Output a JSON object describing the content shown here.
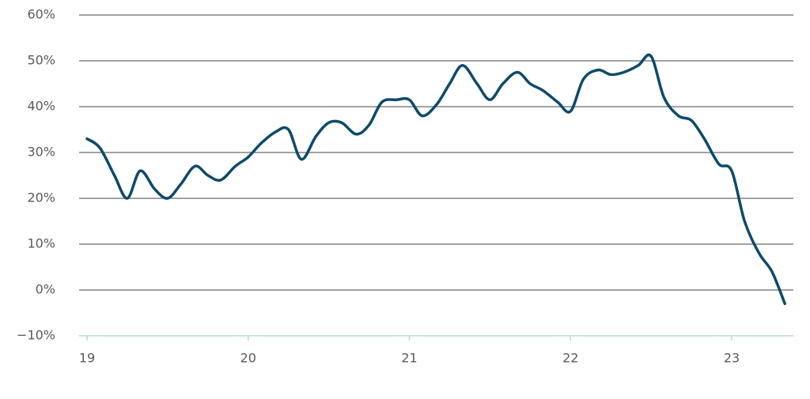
{
  "chart_data": {
    "type": "line",
    "x": [
      19.0,
      19.08,
      19.17,
      19.25,
      19.33,
      19.42,
      19.5,
      19.58,
      19.67,
      19.75,
      19.83,
      19.92,
      20.0,
      20.08,
      20.17,
      20.25,
      20.33,
      20.42,
      20.5,
      20.58,
      20.67,
      20.75,
      20.83,
      20.92,
      21.0,
      21.08,
      21.17,
      21.25,
      21.33,
      21.42,
      21.5,
      21.58,
      21.67,
      21.75,
      21.83,
      21.92,
      22.0,
      22.08,
      22.17,
      22.25,
      22.33,
      22.42,
      22.5,
      22.58,
      22.67,
      22.75,
      22.83,
      22.92,
      23.0,
      23.08,
      23.17,
      23.25,
      23.33
    ],
    "series": [
      {
        "color": "#0e4a6a",
        "values": [
          33,
          31,
          25,
          20,
          26,
          22,
          20,
          23,
          27,
          25,
          24,
          27,
          29,
          32,
          34.5,
          35,
          28.5,
          33.5,
          36.5,
          36.5,
          34,
          36,
          41,
          41.5,
          41.5,
          38,
          40.5,
          45,
          49,
          45,
          41.5,
          45,
          47.5,
          45,
          43.5,
          41,
          39,
          46,
          48,
          47,
          47.5,
          49,
          51,
          42,
          38,
          37,
          33,
          27.5,
          26,
          15,
          8,
          4,
          -3
        ]
      }
    ],
    "xlim": [
      18.95,
      23.4
    ],
    "xticks": [
      19,
      20,
      21,
      22,
      23
    ],
    "ylim": [
      -10,
      60
    ],
    "yticks": [
      {
        "value": -10,
        "label": "−10%"
      },
      {
        "value": 0,
        "label": "0%"
      },
      {
        "value": 10,
        "label": "10%"
      },
      {
        "value": 20,
        "label": "20%"
      },
      {
        "value": 30,
        "label": "30%"
      },
      {
        "value": 40,
        "label": "40%"
      },
      {
        "value": 50,
        "label": "50%"
      },
      {
        "value": 60,
        "label": "60%"
      }
    ],
    "grid": true
  }
}
